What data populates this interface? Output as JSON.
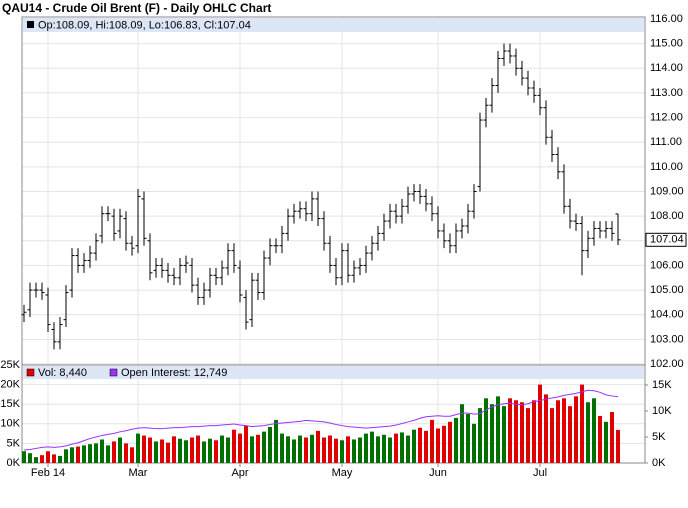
{
  "chart_data": [
    {
      "type": "ohlc",
      "title": "QAU14 - Crude Oil Brent (F) - Daily OHLC Chart",
      "info_label": "Op:108.09, Hi:108.09, Lo:106.83, Cl:107.04",
      "color": "#000000",
      "open": [
        104.0,
        104.2,
        105.0,
        105.0,
        104.8,
        103.4,
        102.9,
        103.8,
        105.0,
        106.4,
        106.0,
        106.2,
        106.5,
        107.2,
        108.1,
        108.0,
        107.4,
        107.9,
        106.9,
        106.8,
        108.7,
        107.0,
        105.8,
        106.0,
        105.8,
        105.6,
        105.5,
        106.0,
        106.0,
        105.2,
        104.7,
        105.0,
        105.6,
        105.5,
        105.9,
        106.6,
        105.9,
        104.7,
        103.8,
        105.4,
        104.9,
        106.3,
        106.8,
        106.8,
        107.3,
        108.0,
        108.2,
        108.3,
        108.1,
        108.7,
        107.9,
        106.9,
        106.0,
        105.5,
        106.6,
        105.6,
        105.9,
        106.0,
        106.5,
        106.9,
        107.3,
        107.8,
        108.2,
        108.0,
        108.4,
        108.9,
        109.0,
        108.8,
        108.5,
        108.1,
        107.4,
        107.0,
        106.8,
        107.4,
        107.6,
        108.2,
        109.2,
        111.9,
        112.5,
        113.3,
        114.4,
        114.7,
        114.5,
        114.0,
        113.6,
        113.2,
        112.9,
        112.4,
        111.2,
        110.5,
        109.8,
        108.4,
        107.8,
        107.7,
        106.6,
        107.1,
        107.5,
        107.4,
        107.5,
        108.09
      ],
      "high": [
        104.4,
        105.3,
        105.3,
        105.3,
        105.1,
        103.7,
        103.9,
        105.2,
        106.7,
        106.7,
        106.5,
        106.8,
        107.3,
        108.4,
        108.4,
        108.3,
        108.3,
        108.2,
        107.2,
        109.1,
        109.0,
        107.3,
        106.3,
        106.3,
        106.1,
        105.9,
        106.3,
        106.4,
        106.3,
        105.5,
        105.3,
        105.9,
        105.9,
        106.2,
        106.9,
        106.9,
        106.2,
        105.0,
        105.7,
        105.7,
        106.6,
        107.1,
        107.1,
        107.6,
        108.3,
        108.5,
        108.6,
        108.6,
        109.0,
        109.0,
        108.2,
        107.2,
        106.3,
        106.9,
        106.9,
        106.2,
        106.3,
        106.8,
        107.2,
        107.6,
        108.1,
        108.5,
        108.5,
        108.7,
        109.2,
        109.3,
        109.3,
        109.1,
        108.8,
        108.4,
        107.7,
        107.3,
        107.7,
        107.9,
        108.5,
        109.3,
        112.2,
        112.8,
        113.6,
        114.7,
        115.0,
        115.0,
        114.8,
        114.3,
        113.9,
        113.5,
        113.2,
        112.7,
        111.5,
        110.8,
        110.1,
        108.7,
        108.1,
        108.0,
        107.4,
        107.8,
        107.8,
        107.8,
        107.8,
        108.09
      ],
      "low": [
        103.7,
        103.9,
        104.7,
        104.6,
        103.3,
        102.6,
        102.6,
        103.5,
        104.7,
        105.7,
        105.7,
        105.9,
        106.2,
        106.9,
        107.8,
        107.0,
        107.1,
        106.6,
        106.4,
        106.5,
        106.8,
        105.4,
        105.5,
        105.5,
        105.3,
        105.2,
        105.2,
        105.7,
        104.9,
        104.4,
        104.4,
        104.7,
        105.2,
        105.2,
        105.6,
        105.7,
        104.5,
        103.4,
        103.5,
        104.6,
        104.6,
        106.0,
        106.5,
        106.5,
        107.0,
        107.7,
        107.9,
        107.8,
        107.8,
        107.6,
        106.6,
        105.7,
        105.2,
        105.2,
        105.3,
        105.3,
        105.6,
        105.7,
        106.2,
        106.6,
        107.0,
        107.5,
        107.7,
        107.7,
        108.1,
        108.6,
        108.5,
        108.2,
        107.8,
        107.1,
        106.7,
        106.5,
        106.5,
        107.1,
        107.3,
        107.9,
        109.0,
        111.6,
        112.2,
        113.0,
        114.1,
        114.2,
        113.7,
        113.3,
        112.9,
        112.6,
        112.1,
        110.9,
        110.2,
        109.5,
        108.1,
        107.5,
        107.4,
        105.6,
        106.3,
        106.8,
        107.1,
        107.1,
        107.0,
        106.83
      ],
      "close": [
        104.1,
        105.0,
        105.0,
        104.9,
        103.6,
        102.9,
        103.6,
        104.9,
        106.4,
        106.0,
        106.2,
        106.5,
        107.0,
        108.1,
        108.1,
        107.3,
        108.0,
        106.9,
        106.7,
        108.8,
        107.1,
        105.7,
        106.0,
        105.8,
        105.6,
        105.5,
        106.0,
        106.1,
        105.2,
        104.7,
        105.0,
        105.6,
        105.5,
        105.9,
        106.6,
        106.0,
        104.8,
        103.7,
        105.4,
        104.9,
        106.3,
        106.8,
        106.8,
        107.3,
        108.0,
        108.2,
        108.3,
        108.1,
        108.7,
        107.9,
        106.9,
        106.0,
        105.5,
        106.6,
        105.6,
        105.9,
        106.0,
        106.5,
        106.9,
        107.3,
        107.8,
        108.2,
        108.0,
        108.4,
        108.9,
        109.0,
        108.8,
        108.5,
        108.1,
        107.4,
        107.0,
        106.8,
        107.4,
        107.6,
        108.2,
        109.0,
        111.9,
        112.5,
        113.3,
        114.4,
        114.7,
        114.5,
        114.0,
        113.6,
        113.2,
        112.9,
        112.4,
        111.2,
        110.5,
        109.8,
        108.4,
        107.8,
        107.7,
        106.6,
        107.1,
        107.5,
        107.4,
        107.5,
        107.3,
        107.04
      ],
      "ylim": [
        102,
        116
      ],
      "yticks": [
        {
          "value": 102,
          "label": "102.00"
        },
        {
          "value": 103,
          "label": "103.00"
        },
        {
          "value": 104,
          "label": "104.00"
        },
        {
          "value": 105,
          "label": "105.00"
        },
        {
          "value": 106,
          "label": "106.00"
        },
        {
          "value": 107,
          "label": "107.00"
        },
        {
          "value": 108,
          "label": "108.00"
        },
        {
          "value": 109,
          "label": "109.00"
        },
        {
          "value": 110,
          "label": "110.00"
        },
        {
          "value": 111,
          "label": "111.00"
        },
        {
          "value": 112,
          "label": "112.00"
        },
        {
          "value": 113,
          "label": "113.00"
        },
        {
          "value": 114,
          "label": "114.00"
        },
        {
          "value": 115,
          "label": "115.00"
        },
        {
          "value": 116,
          "label": "116.00"
        }
      ],
      "grid": true
    },
    {
      "type": "volume",
      "categories": [
        null,
        null,
        null,
        null,
        "Feb 14",
        null,
        null,
        null,
        null,
        null,
        null,
        null,
        null,
        null,
        null,
        null,
        null,
        null,
        null,
        "Mar",
        null,
        null,
        null,
        null,
        null,
        null,
        null,
        null,
        null,
        null,
        null,
        null,
        null,
        null,
        null,
        null,
        "Apr",
        null,
        null,
        null,
        null,
        null,
        null,
        null,
        null,
        null,
        null,
        null,
        null,
        null,
        null,
        null,
        null,
        "May",
        null,
        null,
        null,
        null,
        null,
        null,
        null,
        null,
        null,
        null,
        null,
        null,
        null,
        null,
        null,
        "Jun",
        null,
        null,
        null,
        null,
        null,
        null,
        null,
        null,
        null,
        null,
        null,
        null,
        null,
        null,
        null,
        null,
        "Jul",
        null,
        null,
        null,
        null,
        null,
        null,
        null,
        null,
        null,
        null,
        null,
        null,
        null
      ],
      "series": [
        {
          "name": "Vol: 8,440",
          "color": "#e00000",
          "up_color": "#007000",
          "down_color": "#e00000",
          "values": [
            3000,
            2500,
            1500,
            2000,
            3000,
            2200,
            1800,
            3500,
            4000,
            4200,
            4500,
            4800,
            5000,
            6000,
            4500,
            5500,
            6500,
            5000,
            4000,
            7500,
            7000,
            6500,
            5500,
            6000,
            5200,
            6800,
            6200,
            5800,
            6500,
            7000,
            5500,
            6200,
            5800,
            7000,
            6500,
            8500,
            7500,
            9500,
            6800,
            7200,
            8000,
            9200,
            11000,
            7500,
            6800,
            6000,
            7000,
            6500,
            7200,
            8200,
            6500,
            7000,
            6200,
            5800,
            6800,
            6000,
            6500,
            7500,
            8000,
            6800,
            7200,
            6500,
            7500,
            7800,
            7000,
            8500,
            9000,
            8200,
            11000,
            8800,
            9500,
            10500,
            11500,
            15000,
            12500,
            10000,
            14000,
            16500,
            15000,
            17000,
            14500,
            16500,
            16000,
            15500,
            14000,
            16000,
            20000,
            17500,
            14000,
            16000,
            16500,
            14500,
            17000,
            20000,
            15500,
            16500,
            12000,
            10500,
            13000,
            8440
          ]
        },
        {
          "name": "Open Interest: 12,749",
          "color": "#9933ff",
          "axis": "y2",
          "values": [
            2500,
            2600,
            2800,
            3000,
            3100,
            3000,
            3100,
            3300,
            3600,
            3900,
            4300,
            4700,
            5000,
            5300,
            5500,
            5700,
            6000,
            6200,
            6500,
            6700,
            6800,
            6700,
            6600,
            6600,
            6700,
            6800,
            6800,
            6900,
            7000,
            7000,
            7100,
            7200,
            7200,
            7300,
            7400,
            7500,
            7300,
            7200,
            7000,
            7100,
            7200,
            7400,
            7600,
            7700,
            7800,
            7900,
            8000,
            8200,
            8100,
            8000,
            7900,
            7700,
            7400,
            7200,
            7000,
            6900,
            6800,
            6700,
            6800,
            6900,
            7000,
            7100,
            7300,
            7600,
            7900,
            8200,
            8600,
            8900,
            9000,
            9100,
            9000,
            9000,
            9300,
            9600,
            9600,
            9400,
            9500,
            10200,
            10800,
            11200,
            11400,
            11500,
            11300,
            11200,
            11400,
            11800,
            12000,
            12300,
            12500,
            12700,
            13000,
            13200,
            13400,
            13700,
            14000,
            13900,
            13600,
            13100,
            12900,
            12749
          ]
        }
      ],
      "ylim": [
        0,
        25000
      ],
      "yticks": [
        {
          "value": 0,
          "label": "0K"
        },
        {
          "value": 5000,
          "label": "5K"
        },
        {
          "value": 10000,
          "label": "10K"
        },
        {
          "value": 15000,
          "label": "15K"
        },
        {
          "value": 20000,
          "label": "20K"
        },
        {
          "value": 25000,
          "label": "25K"
        }
      ],
      "y2lim": [
        0,
        18850
      ],
      "y2ticks": [
        {
          "value": 0,
          "label": "0K"
        },
        {
          "value": 5000,
          "label": "5K"
        },
        {
          "value": 10000,
          "label": "10K"
        },
        {
          "value": 15000,
          "label": "15K"
        }
      ],
      "grid": true
    }
  ]
}
